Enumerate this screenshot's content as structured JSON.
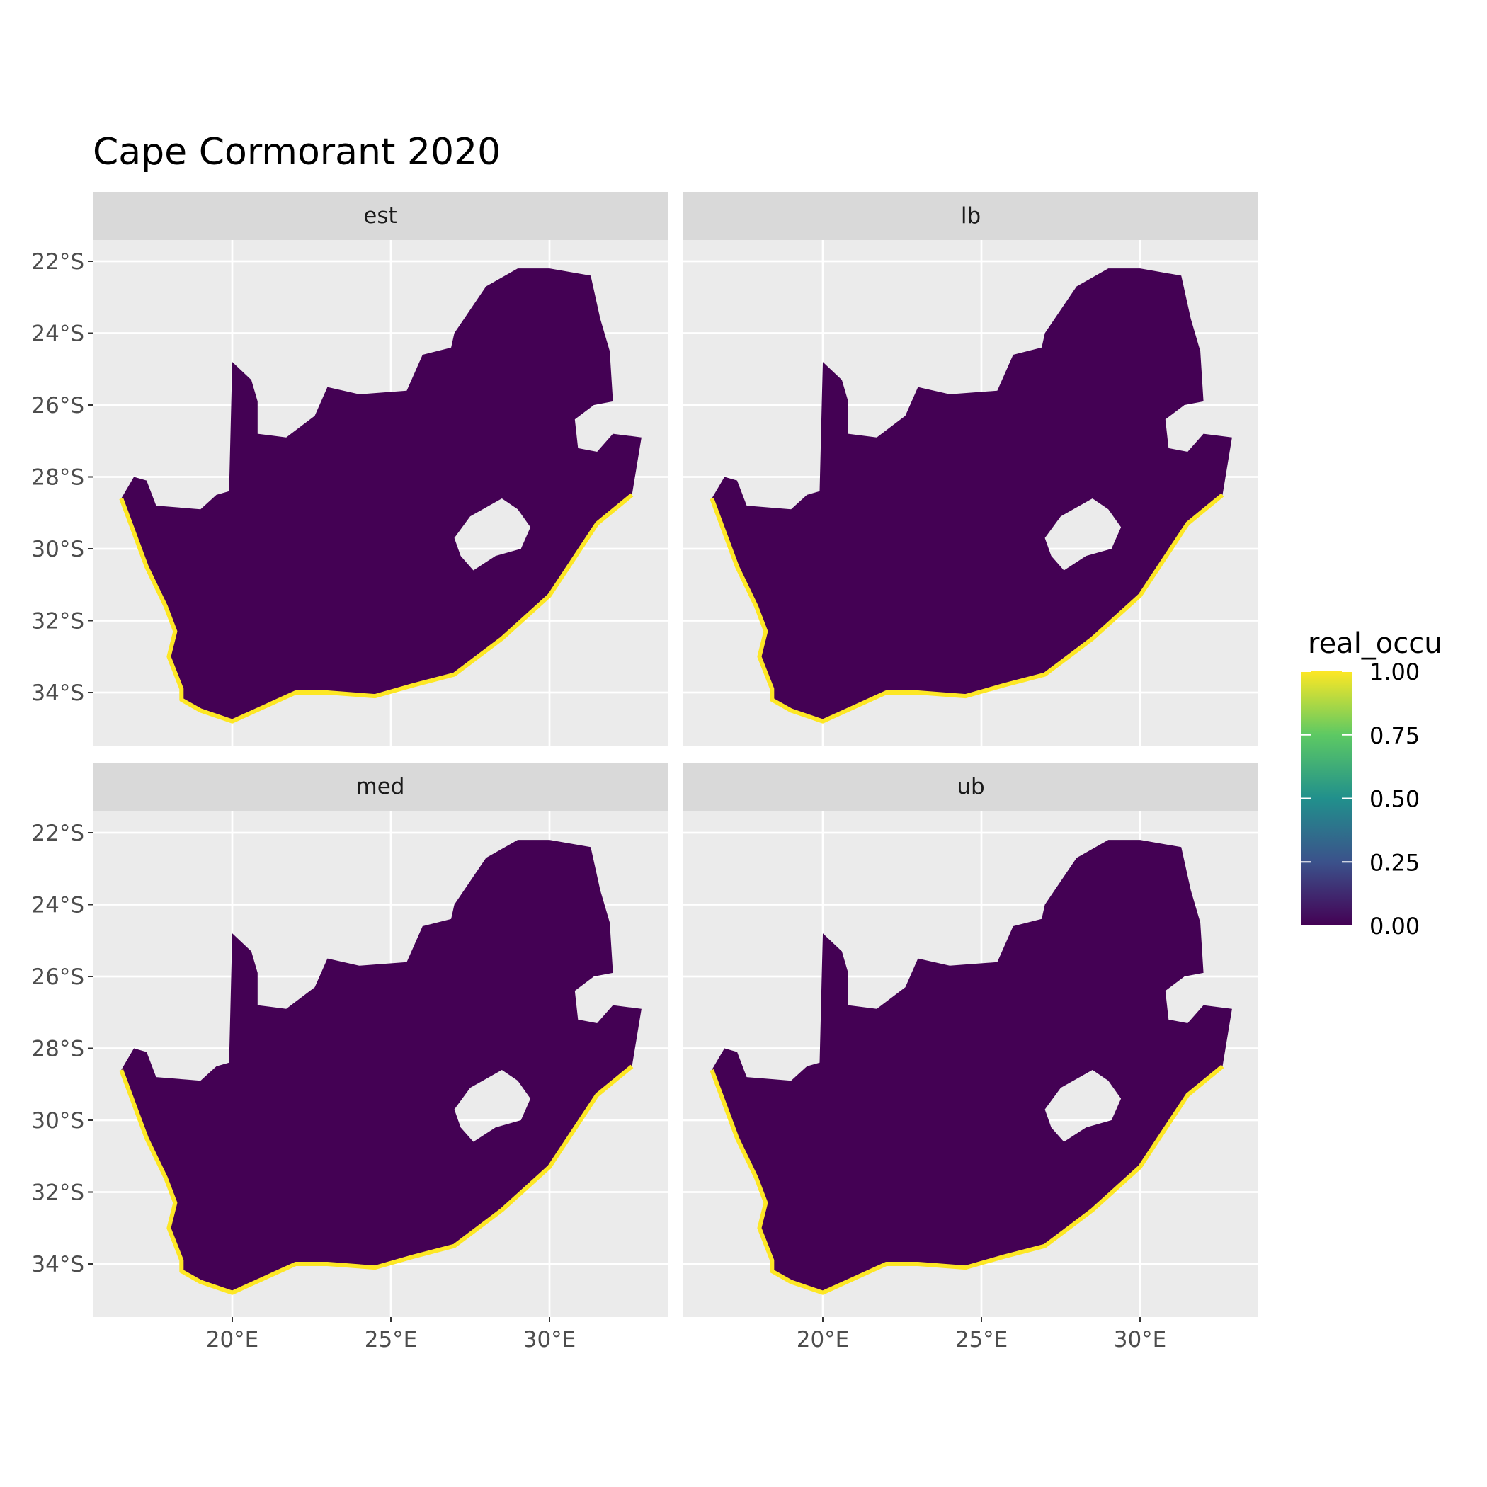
{
  "chart_data": {
    "type": "heatmap",
    "title": "Cape Cormorant 2020",
    "xlabel": "",
    "ylabel": "",
    "facets": [
      "est",
      "lb",
      "med",
      "ub"
    ],
    "x_ticks": [
      "20°E",
      "25°E",
      "30°E"
    ],
    "x_tick_values": [
      20,
      25,
      30
    ],
    "y_ticks": [
      "22°S",
      "24°S",
      "26°S",
      "28°S",
      "30°S",
      "32°S",
      "34°S"
    ],
    "y_tick_values": [
      -22,
      -24,
      -26,
      -28,
      -30,
      -32,
      -34
    ],
    "xlim": [
      15.6,
      33.7
    ],
    "ylim": [
      -35.4,
      -21.2
    ],
    "grid": true,
    "legend": {
      "title": "real_occu",
      "placement": "right",
      "ticks": [
        "1.00",
        "0.75",
        "0.50",
        "0.25",
        "0.00"
      ],
      "tick_values": [
        1,
        0.75,
        0.5,
        0.25,
        0
      ],
      "range": [
        0,
        1
      ],
      "colormap": "viridis",
      "colors": [
        "#440154",
        "#3b528b",
        "#21908c",
        "#5dc963",
        "#fde725"
      ]
    },
    "description_values": {
      "interior_value": 0.0,
      "coastline_value": 1.0
    }
  }
}
